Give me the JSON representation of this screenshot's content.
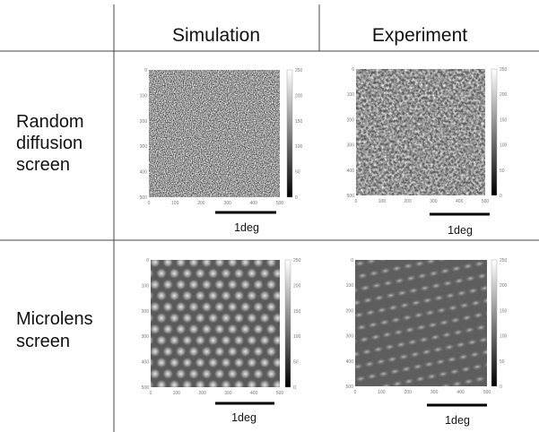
{
  "header": {
    "columns": [
      "Simulation",
      "Experiment"
    ]
  },
  "rows": [
    {
      "label": [
        "Random",
        "diffusion",
        "screen"
      ]
    },
    {
      "label": [
        "Microlens",
        "screen"
      ]
    }
  ],
  "panels": {
    "axis_ticks": [
      0,
      100,
      200,
      300,
      400,
      500
    ],
    "colorbar_ticks": [
      0,
      50,
      100,
      150,
      200,
      250
    ],
    "scale_bar": "1deg"
  }
}
